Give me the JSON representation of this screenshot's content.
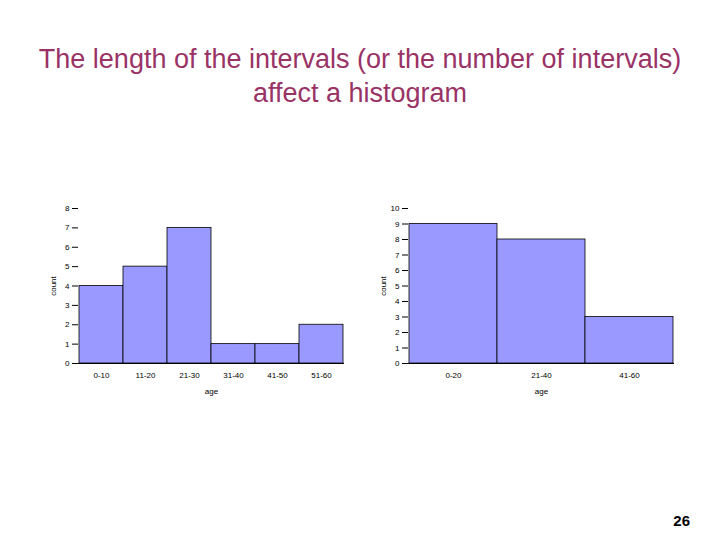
{
  "title": "The length of the intervals (or the number of intervals) affect a histogram",
  "page_number": 26,
  "chart_data": [
    {
      "type": "bar",
      "categories": [
        "0-10",
        "11-20",
        "21-30",
        "31-40",
        "41-50",
        "51-60"
      ],
      "values": [
        4,
        5,
        7,
        1,
        1,
        2
      ],
      "color": "#9999ff",
      "xlabel": "age",
      "ylabel": "count",
      "ylim": [
        0,
        8
      ],
      "yticks": [
        0,
        1,
        2,
        3,
        4,
        5,
        6,
        7,
        8
      ]
    },
    {
      "type": "bar",
      "categories": [
        "0-20",
        "21-40",
        "41-60"
      ],
      "values": [
        9,
        8,
        3
      ],
      "color": "#9999ff",
      "xlabel": "age",
      "ylabel": "count",
      "ylim": [
        0,
        10
      ],
      "yticks": [
        0,
        1,
        2,
        3,
        4,
        5,
        6,
        7,
        8,
        9,
        10
      ]
    }
  ]
}
